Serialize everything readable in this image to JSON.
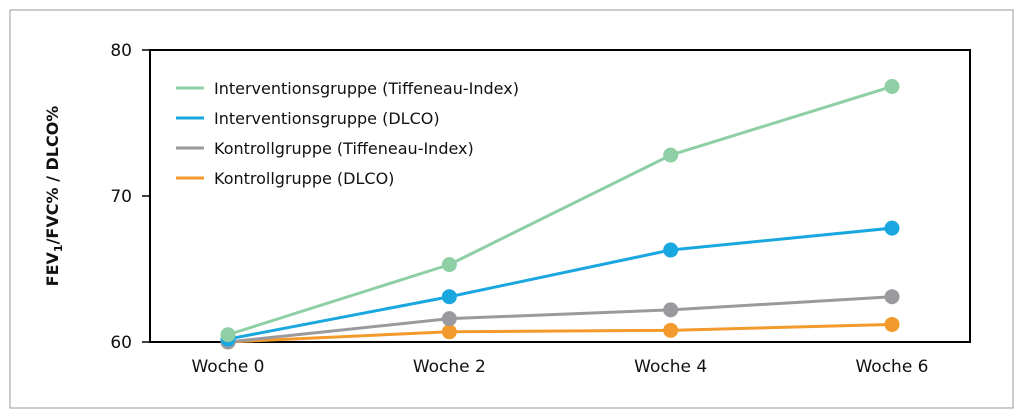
{
  "chart_data": {
    "type": "line",
    "categories": [
      "Woche 0",
      "Woche 2",
      "Woche 4",
      "Woche 6"
    ],
    "series": [
      {
        "name": "Interventionsgruppe (Tiffeneau-Index)",
        "color": "#8fcfa6",
        "values": [
          60.5,
          65.3,
          72.8,
          77.5
        ]
      },
      {
        "name": "Interventionsgruppe (DLCO)",
        "color": "#1aa7e0",
        "values": [
          60.2,
          63.1,
          66.3,
          67.8
        ]
      },
      {
        "name": "Kontrollgruppe (Tiffeneau-Index)",
        "color": "#9a9a9e",
        "values": [
          60.0,
          61.6,
          62.2,
          63.1
        ]
      },
      {
        "name": "Kontrollgruppe (DLCO)",
        "color": "#f39a2c",
        "values": [
          60.0,
          60.7,
          60.8,
          61.2
        ]
      }
    ],
    "ylabel_main": "FEV",
    "ylabel_sub": "1",
    "ylabel_rest": "/FVC% / DLCO%",
    "ylim": [
      60,
      80
    ],
    "yticks": [
      60,
      70,
      80
    ],
    "grid": false,
    "legend_position": "top-left"
  }
}
